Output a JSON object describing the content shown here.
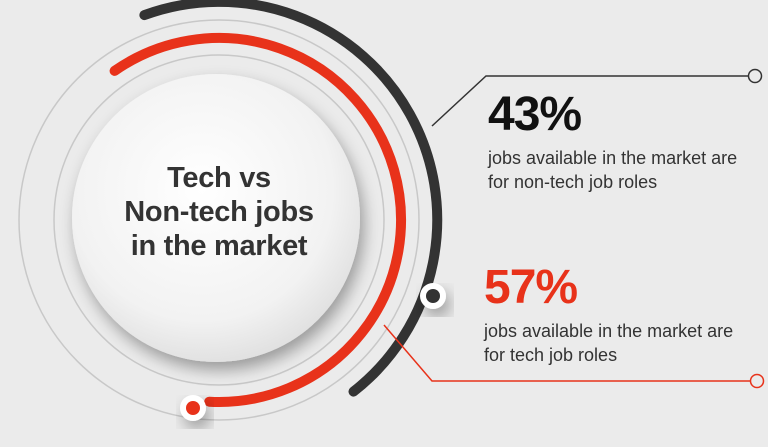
{
  "chart_data": {
    "type": "pie",
    "title": "Tech vs Non-tech jobs in the market",
    "title_lines": [
      "Tech vs",
      "Non-tech jobs",
      "in the market"
    ],
    "slices": [
      {
        "label": "jobs available in the market are for non-tech job roles",
        "value": 43,
        "value_text": "43%",
        "color": "#333333"
      },
      {
        "label": "jobs available in the market are for tech job roles",
        "value": 57,
        "value_text": "57%",
        "color": "#e8321a"
      }
    ]
  },
  "stats": {
    "nontech": {
      "value": "43%",
      "desc_line1": "jobs available in the market are",
      "desc_line2": "for non-tech job roles"
    },
    "tech": {
      "value": "57%",
      "desc_line1": "jobs available in the market are",
      "desc_line2": "for tech job roles"
    }
  },
  "colors": {
    "background": "#ebebeb",
    "accent_red": "#e8321a",
    "dark": "#333333",
    "guide": "#bdbdbd"
  }
}
